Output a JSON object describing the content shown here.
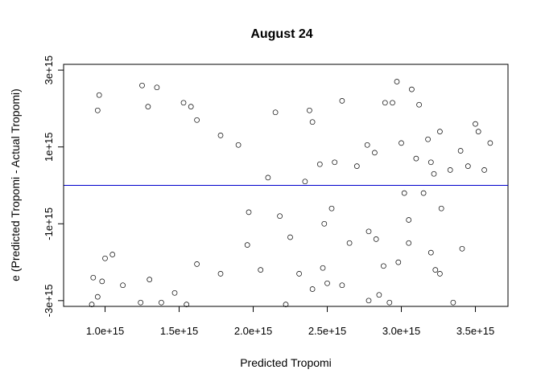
{
  "chart_data": {
    "type": "scatter",
    "title": "August 24",
    "xlabel": "Predicted Tropomi",
    "ylabel": "e (Predicted Tropomi - Actual Tropomi)",
    "xlim": [
      720000000000000.0,
      3720000000000000.0
    ],
    "ylim": [
      -3150000000000000.0,
      3150000000000000.0
    ],
    "x_ticks": [
      {
        "value": 1000000000000000.0,
        "label": "1.0e+15"
      },
      {
        "value": 1500000000000000.0,
        "label": "1.5e+15"
      },
      {
        "value": 2000000000000000.0,
        "label": "2.0e+15"
      },
      {
        "value": 2500000000000000.0,
        "label": "2.5e+15"
      },
      {
        "value": 3000000000000000.0,
        "label": "3.0e+15"
      },
      {
        "value": 3500000000000000.0,
        "label": "3.5e+15"
      }
    ],
    "y_ticks": [
      {
        "value": -3000000000000000.0,
        "label": "-3e+15"
      },
      {
        "value": -1000000000000000.0,
        "label": "-1e+15"
      },
      {
        "value": 1000000000000000.0,
        "label": "1e+15"
      },
      {
        "value": 3000000000000000.0,
        "label": "3e+15"
      }
    ],
    "reference_line": {
      "y": 0,
      "color": "#0000cc"
    },
    "point_color": "#000000",
    "grid": false,
    "legend": "none",
    "points": [
      [
        1250000000000000.0,
        2600000000000000.0
      ],
      [
        1350000000000000.0,
        2550000000000000.0
      ],
      [
        2970000000000000.0,
        2700000000000000.0
      ],
      [
        3070000000000000.0,
        2500000000000000.0
      ],
      [
        2890000000000000.0,
        2150000000000000.0
      ],
      [
        2940000000000000.0,
        2150000000000000.0
      ],
      [
        3120000000000000.0,
        2100000000000000.0
      ],
      [
        2600000000000000.0,
        2200000000000000.0
      ],
      [
        2380000000000000.0,
        1950000000000000.0
      ],
      [
        2150000000000000.0,
        1900000000000000.0
      ],
      [
        1580000000000000.0,
        2050000000000000.0
      ],
      [
        1530000000000000.0,
        2150000000000000.0
      ],
      [
        1290000000000000.0,
        2050000000000000.0
      ],
      [
        960000000000000.0,
        2350000000000000.0
      ],
      [
        950000000000000.0,
        1950000000000000.0
      ],
      [
        3500000000000000.0,
        1600000000000000.0
      ],
      [
        3520000000000000.0,
        1400000000000000.0
      ],
      [
        3260000000000000.0,
        1400000000000000.0
      ],
      [
        3600000000000000.0,
        1100000000000000.0
      ],
      [
        3180000000000000.0,
        1200000000000000.0
      ],
      [
        3000000000000000.0,
        1100000000000000.0
      ],
      [
        3220000000000000.0,
        300000000000000.0
      ],
      [
        3400000000000000.0,
        900000000000000.0
      ],
      [
        3450000000000000.0,
        500000000000000.0
      ],
      [
        3560000000000000.0,
        400000000000000.0
      ],
      [
        3330000000000000.0,
        400000000000000.0
      ],
      [
        3200000000000000.0,
        600000000000000.0
      ],
      [
        3100000000000000.0,
        700000000000000.0
      ],
      [
        2770000000000000.0,
        1050000000000000.0
      ],
      [
        2820000000000000.0,
        850000000000000.0
      ],
      [
        2700000000000000.0,
        500000000000000.0
      ],
      [
        2550000000000000.0,
        600000000000000.0
      ],
      [
        2450000000000000.0,
        550000000000000.0
      ],
      [
        2350000000000000.0,
        100000000000000.0
      ],
      [
        2100000000000000.0,
        200000000000000.0
      ],
      [
        3020000000000000.0,
        -200000000000000.0
      ],
      [
        3150000000000000.0,
        -200000000000000.0
      ],
      [
        3270000000000000.0,
        -600000000000000.0
      ],
      [
        3050000000000000.0,
        -900000000000000.0
      ],
      [
        2780000000000000.0,
        -1200000000000000.0
      ],
      [
        2530000000000000.0,
        -600000000000000.0
      ],
      [
        2480000000000000.0,
        -1000000000000000.0
      ],
      [
        2180000000000000.0,
        -800000000000000.0
      ],
      [
        2650000000000000.0,
        -1500000000000000.0
      ],
      [
        3410000000000000.0,
        -1650000000000000.0
      ],
      [
        3050000000000000.0,
        -1500000000000000.0
      ],
      [
        3200000000000000.0,
        -1750000000000000.0
      ],
      [
        2980000000000000.0,
        -2000000000000000.0
      ],
      [
        2880000000000000.0,
        -2100000000000000.0
      ],
      [
        3230000000000000.0,
        -2200000000000000.0
      ],
      [
        3260000000000000.0,
        -2300000000000000.0
      ],
      [
        2850000000000000.0,
        -2850000000000000.0
      ],
      [
        2920000000000000.0,
        -3050000000000000.0
      ],
      [
        2780000000000000.0,
        -3000000000000000.0
      ],
      [
        3350000000000000.0,
        -3050000000000000.0
      ],
      [
        2470000000000000.0,
        -2150000000000000.0
      ],
      [
        2310000000000000.0,
        -2300000000000000.0
      ],
      [
        2400000000000000.0,
        -2700000000000000.0
      ],
      [
        2220000000000000.0,
        -3100000000000000.0
      ],
      [
        2050000000000000.0,
        -2200000000000000.0
      ],
      [
        1960000000000000.0,
        -1550000000000000.0
      ],
      [
        1780000000000000.0,
        -2300000000000000.0
      ],
      [
        1620000000000000.0,
        -2050000000000000.0
      ],
      [
        1550000000000000.0,
        -3100000000000000.0
      ],
      [
        1470000000000000.0,
        -2800000000000000.0
      ],
      [
        1380000000000000.0,
        -3050000000000000.0
      ],
      [
        1300000000000000.0,
        -2450000000000000.0
      ],
      [
        1240000000000000.0,
        -3050000000000000.0
      ],
      [
        1120000000000000.0,
        -2600000000000000.0
      ],
      [
        980000000000000.0,
        -2500000000000000.0
      ],
      [
        950000000000000.0,
        -2900000000000000.0
      ],
      [
        910000000000000.0,
        -3100000000000000.0
      ],
      [
        920000000000000.0,
        -2400000000000000.0
      ],
      [
        1050000000000000.0,
        -1800000000000000.0
      ],
      [
        1000000000000000.0,
        -1900000000000000.0
      ],
      [
        2830000000000000.0,
        -1400000000000000.0
      ],
      [
        2250000000000000.0,
        -1350000000000000.0
      ],
      [
        2400000000000000.0,
        1650000000000000.0
      ],
      [
        2600000000000000.0,
        -2600000000000000.0
      ],
      [
        2500000000000000.0,
        -2550000000000000.0
      ],
      [
        1620000000000000.0,
        1700000000000000.0
      ],
      [
        1780000000000000.0,
        1300000000000000.0
      ],
      [
        1900000000000000.0,
        1050000000000000.0
      ],
      [
        1970000000000000.0,
        -700000000000000.0
      ]
    ]
  }
}
